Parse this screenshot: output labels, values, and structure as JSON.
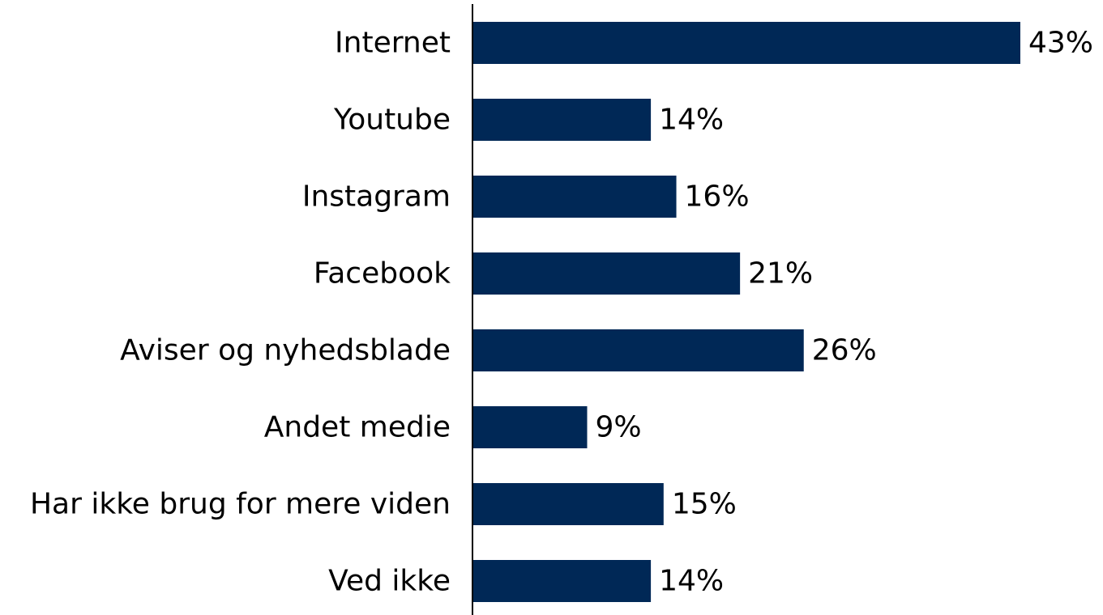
{
  "chart_data": {
    "type": "bar",
    "orientation": "horizontal",
    "categories": [
      "Internet",
      "Youtube",
      "Instagram",
      "Facebook",
      "Aviser og nyhedsblade",
      "Andet medie",
      "Har ikke brug for mere viden",
      "Ved ikke"
    ],
    "values": [
      43,
      14,
      16,
      21,
      26,
      9,
      15,
      14
    ],
    "value_labels": [
      "43%",
      "14%",
      "16%",
      "21%",
      "26%",
      "9%",
      "15%",
      "14%"
    ],
    "unit": "%",
    "xlim": [
      0,
      43
    ],
    "grid": false,
    "legend": "none",
    "bar_color": "#002856",
    "axis_color": "#000000",
    "text_color": "#000000"
  }
}
